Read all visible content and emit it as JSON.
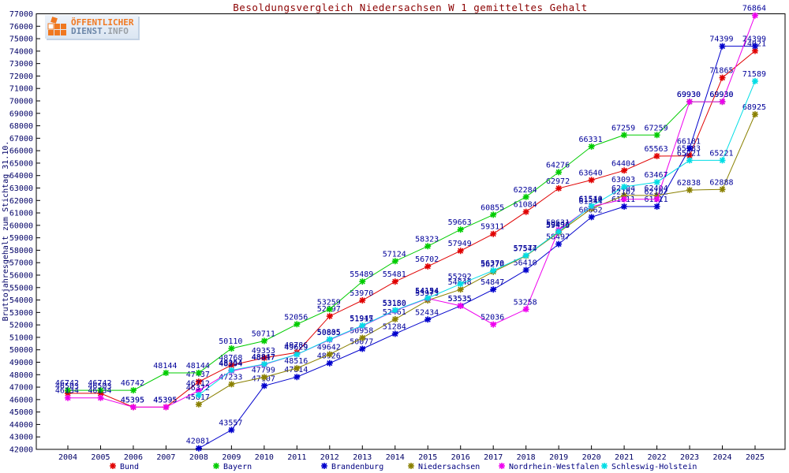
{
  "logo": {
    "line1": "ÖFFENTLICHER",
    "line2_part1": "DIENST.",
    "line2_part2": "INFO"
  },
  "chart_data": {
    "type": "line",
    "title": "Besoldungsvergleich Niedersachsen W 1 gemitteltes Gehalt",
    "ylabel": "Bruttojahresgehalt zum Stichtag 31.10.",
    "xlabel": "",
    "ylim": [
      42000,
      77000
    ],
    "ytick_step": 1000,
    "grid": false,
    "legend_position": "bottom",
    "point_labels": true,
    "label_color": "#000099",
    "axis_color": "#000000",
    "title_color": "#8b0000",
    "categories": [
      2004,
      2005,
      2006,
      2007,
      2008,
      2009,
      2010,
      2011,
      2012,
      2013,
      2014,
      2015,
      2016,
      2017,
      2018,
      2019,
      2020,
      2021,
      2022,
      2023,
      2024,
      2025
    ],
    "series": [
      {
        "name": "Bund",
        "color": "#e00000",
        "values": [
          46503,
          46503,
          45395,
          45395,
          47437,
          48768,
          49353,
          49786,
          52697,
          53970,
          55481,
          56702,
          57949,
          59311,
          61084,
          62972,
          63640,
          64404,
          65563,
          65583,
          71865,
          74021
        ]
      },
      {
        "name": "Bayern",
        "color": "#00cc00",
        "values": [
          46742,
          46742,
          46742,
          48144,
          48144,
          50110,
          50711,
          52056,
          53259,
          55489,
          57124,
          58323,
          59663,
          60855,
          62284,
          64276,
          66331,
          67259,
          67259,
          69930,
          69930,
          null
        ]
      },
      {
        "name": "Brandenburg",
        "color": "#0000cc",
        "values": [
          null,
          null,
          null,
          null,
          42081,
          43557,
          47107,
          47814,
          48926,
          50077,
          51284,
          52434,
          53535,
          54847,
          56410,
          58497,
          60662,
          61511,
          61511,
          66181,
          74399,
          74399
        ]
      },
      {
        "name": "Niedersachsen",
        "color": "#8a8000",
        "values": [
          null,
          null,
          null,
          null,
          45617,
          47233,
          47799,
          48516,
          49642,
          50958,
          52461,
          53973,
          54848,
          56270,
          57544,
          59433,
          61344,
          62404,
          62404,
          62838,
          62888,
          68925
        ]
      },
      {
        "name": "Nordrhein-Westfalen",
        "color": "#ee00ee",
        "values": [
          46134,
          46134,
          45395,
          45395,
          46712,
          48294,
          48817,
          49629,
          50805,
          51915,
          53150,
          54124,
          53535,
          52036,
          53258,
          59631,
          61514,
          62102,
          62102,
          69930,
          69930,
          76864
        ]
      },
      {
        "name": "Schleswig-Holstein",
        "color": "#00dde5",
        "values": [
          null,
          null,
          null,
          null,
          46372,
          48354,
          48847,
          49629,
          50835,
          51947,
          53180,
          54154,
          55292,
          56370,
          57577,
          59496,
          61540,
          63093,
          63467,
          65221,
          65221,
          71589
        ]
      }
    ]
  }
}
